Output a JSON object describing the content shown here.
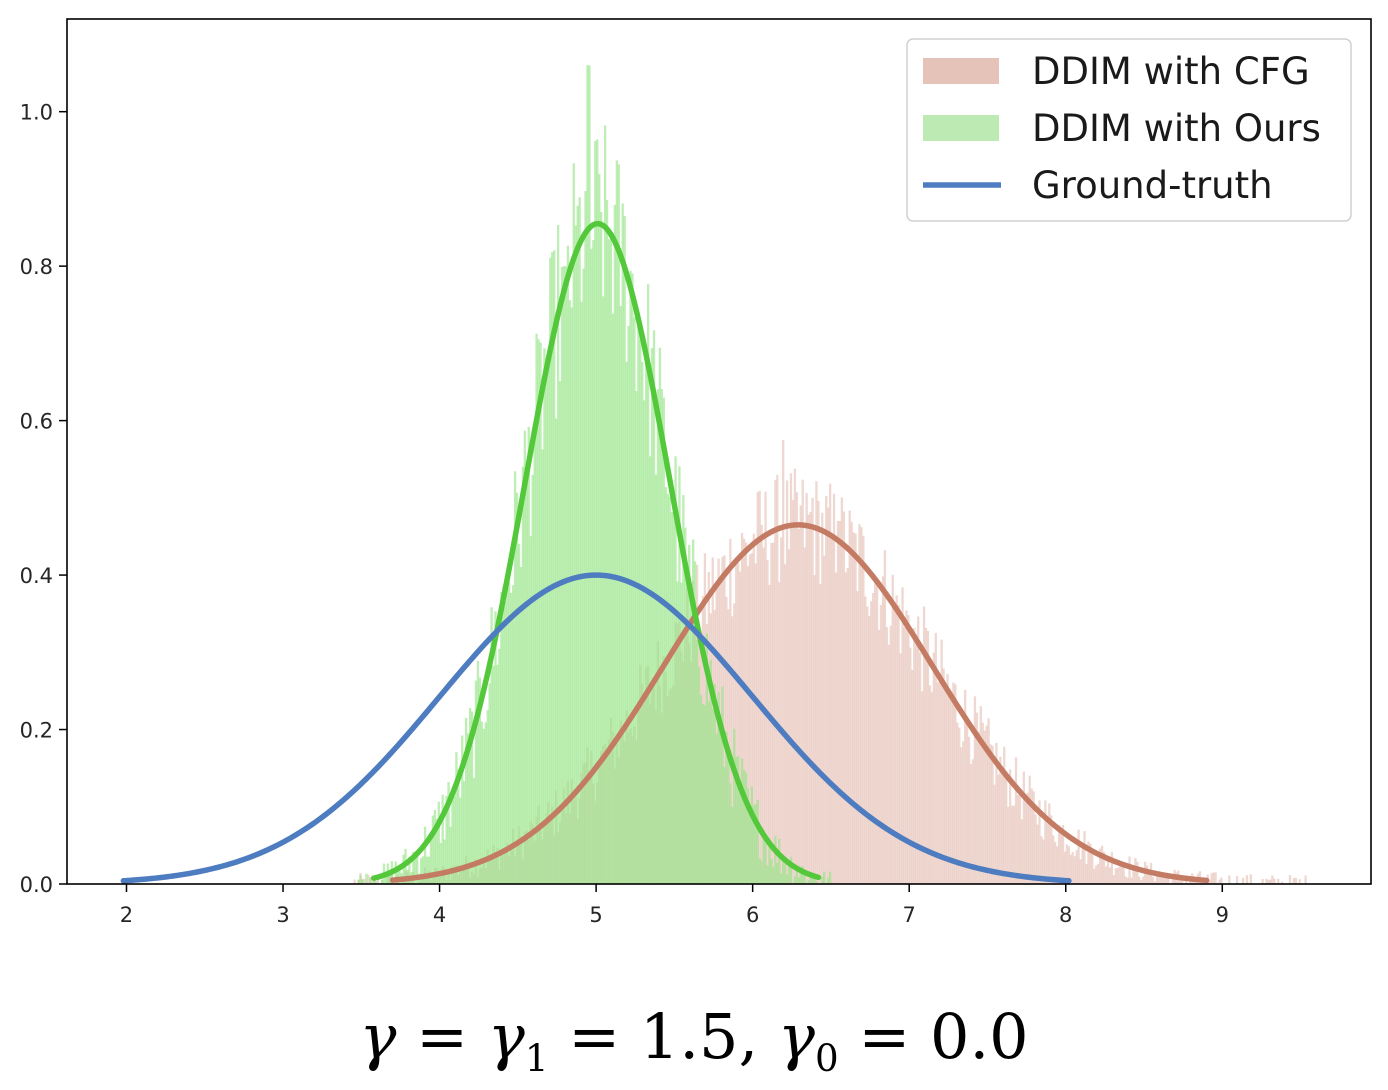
{
  "chart_data": {
    "type": "histogram",
    "title": "",
    "xlabel": "",
    "ylabel": "",
    "xlim": [
      1.62,
      9.95
    ],
    "ylim": [
      0,
      1.12
    ],
    "x_ticks": [
      2,
      3,
      4,
      5,
      6,
      7,
      8,
      9
    ],
    "x_tick_labels": [
      "2",
      "3",
      "4",
      "5",
      "6",
      "7",
      "8",
      "9"
    ],
    "y_ticks": [
      0.0,
      0.2,
      0.4,
      0.6,
      0.8,
      1.0
    ],
    "y_tick_labels": [
      "0.0",
      "0.2",
      "0.4",
      "0.6",
      "0.8",
      "1.0"
    ],
    "grid": false,
    "legend_position": "top-right",
    "series": [
      {
        "name": "DDIM with CFG",
        "kind": "histogram",
        "color": "#e6c3b8",
        "opacity": 0.65,
        "fit": {
          "mean": 6.29,
          "std": 0.86,
          "peak": 0.465
        },
        "range": [
          3.45,
          9.55
        ],
        "sample_peaks": [
          {
            "x": 6.19,
            "y": 0.575
          },
          {
            "x": 6.38,
            "y": 0.5
          },
          {
            "x": 6.55,
            "y": 0.47
          }
        ]
      },
      {
        "name": "DDIM with Ours",
        "kind": "histogram",
        "color": "#9ae58b",
        "opacity": 0.65,
        "fit": {
          "mean": 5.01,
          "std": 0.465,
          "peak": 0.855
        },
        "range": [
          3.4,
          6.5
        ],
        "sample_peaks": [
          {
            "x": 4.95,
            "y": 1.06
          },
          {
            "x": 5.03,
            "y": 0.87
          },
          {
            "x": 4.8,
            "y": 0.8
          }
        ]
      },
      {
        "name": "DDIM with CFG fit",
        "kind": "line",
        "color": "#c47b64",
        "mean": 6.29,
        "std": 0.86,
        "peak": 0.465,
        "x_range": [
          3.7,
          8.9
        ]
      },
      {
        "name": "DDIM with Ours fit",
        "kind": "line",
        "color": "#53c83a",
        "mean": 5.01,
        "std": 0.465,
        "peak": 0.855,
        "x_range": [
          3.58,
          6.42
        ]
      },
      {
        "name": "Ground-truth",
        "kind": "line",
        "color": "#4e7cc0",
        "mean": 5.0,
        "std": 1.0,
        "peak": 0.4,
        "x_range": [
          1.98,
          8.02
        ]
      }
    ],
    "legend": [
      {
        "label": "DDIM with CFG",
        "kind": "patch",
        "color": "#e6c3b8"
      },
      {
        "label": "DDIM with Ours",
        "kind": "patch",
        "color": "#bde9b2"
      },
      {
        "label": "Ground-truth",
        "kind": "line",
        "color": "#4e7cc0"
      }
    ]
  },
  "caption": {
    "gamma": "γ",
    "eq1": " = ",
    "gamma1": "γ",
    "sub1": "1",
    "eq2": " = 1.5,  ",
    "gamma0": "γ",
    "sub0": "0",
    "eq3": " = 0.0"
  }
}
